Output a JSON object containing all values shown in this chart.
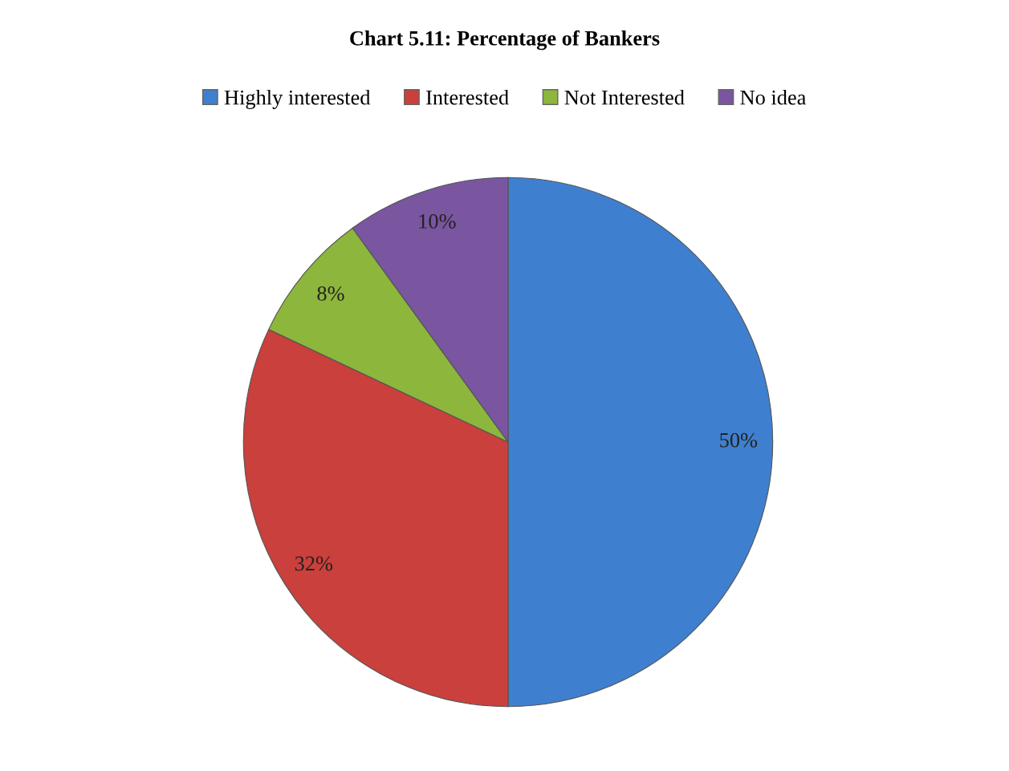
{
  "chart_data": {
    "type": "pie",
    "title": "Chart 5.11: Percentage of Bankers",
    "categories": [
      "Highly interested",
      "Interested",
      "Not Interested",
      "No idea"
    ],
    "values": [
      50,
      32,
      8,
      10
    ],
    "colors": [
      "#3f7fcf",
      "#c9403c",
      "#8db63c",
      "#7a55a0"
    ],
    "value_labels": [
      "50%",
      "32%",
      "8%",
      "10%"
    ],
    "legend": "top"
  }
}
